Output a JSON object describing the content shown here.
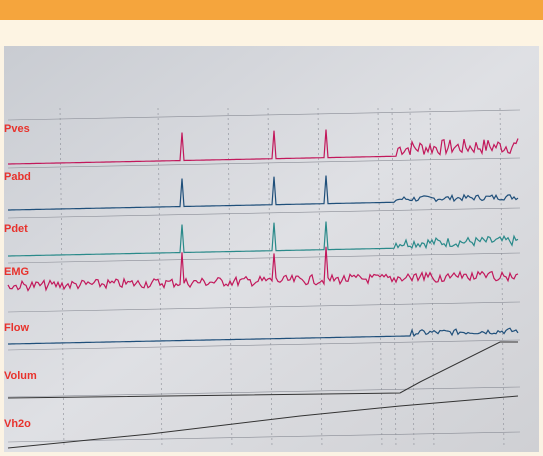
{
  "photo": {
    "channel_labels": [
      "Pves",
      "Pabd",
      "Pdet",
      "EMG",
      "Flow",
      "Volum",
      "Vh2o"
    ]
  }
}
